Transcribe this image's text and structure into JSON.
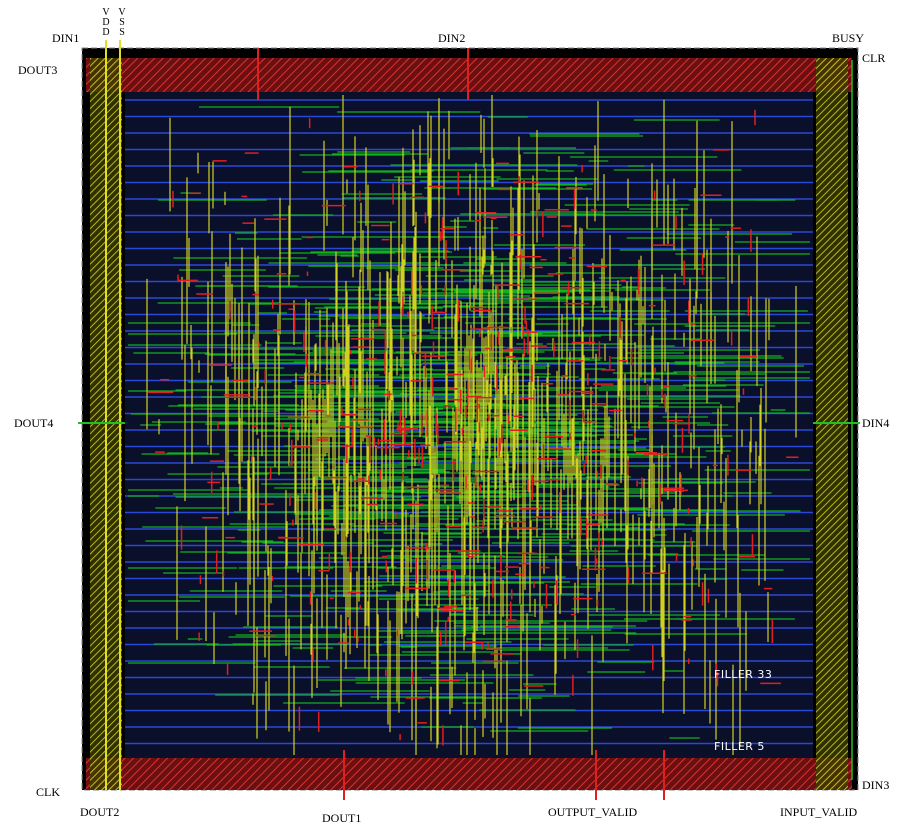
{
  "pins": [
    "DIN1",
    "DIN2",
    "BUSY",
    "DOUT3",
    "CLR",
    "DOUT4",
    "DIN4",
    "CLK",
    "DIN3",
    "DOUT2",
    "DOUT1",
    "OUTPUT_VALID",
    "INPUT_VALID"
  ],
  "power_rails": [
    "VDD",
    "VSS"
  ],
  "cells": [
    "FILLER 33",
    "FILLER 5"
  ]
}
